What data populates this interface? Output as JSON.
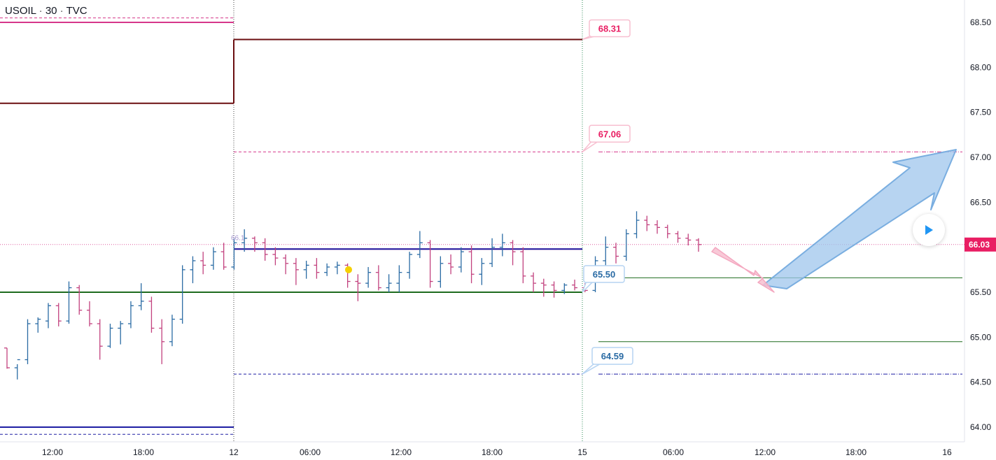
{
  "header": {
    "symbol": "USOIL",
    "interval": "30",
    "source": "TVC",
    "separator": "·"
  },
  "colors": {
    "up_bar": "#2a6ba4",
    "down_bar": "#c2417e",
    "dark_red_line": "#6b0e10",
    "magenta_line": "#d6368a",
    "navy_line": "#1f1fa3",
    "green_line": "#1e6b1e",
    "current_price_bg": "#e91e63",
    "callout_pink": "#e91e63",
    "callout_blue": "#2a6ba4",
    "arrow_blue": "#9fc5ec",
    "arrow_pink": "#f7bfd0",
    "marker_yellow": "#f5d000"
  },
  "chart_data": {
    "type": "line",
    "subtype": "ohlc-bars",
    "symbol": "USOIL",
    "timeframe": "30",
    "y_axis": {
      "side": "right",
      "ticks": [
        "68.50",
        "68.00",
        "67.50",
        "67.00",
        "66.50",
        "66.00",
        "65.50",
        "65.00",
        "64.50",
        "64.00"
      ],
      "ylim": [
        63.8,
        68.6
      ]
    },
    "x_axis": {
      "ticks": [
        "12:00",
        "18:00",
        "12",
        "06:00",
        "12:00",
        "18:00",
        "15",
        "06:00",
        "12:00",
        "18:00",
        "16"
      ]
    },
    "current_price": "66.03",
    "session_levels": [
      {
        "name": "upper-prev",
        "value": 68.5,
        "color": "magenta",
        "style": "solid",
        "session": 1
      },
      {
        "name": "upper-prev-dash",
        "value": 68.55,
        "color": "magenta",
        "style": "dashed",
        "session": 1
      },
      {
        "name": "step-prev",
        "value": 67.6,
        "color": "dark-red",
        "style": "solid",
        "session": 1
      },
      {
        "name": "lower-prev",
        "value": 64.0,
        "color": "navy",
        "style": "solid",
        "session": 1
      },
      {
        "name": "lower-prev-dash",
        "value": 63.92,
        "color": "navy",
        "style": "dashed",
        "session": 1
      },
      {
        "name": "step-high",
        "value": 68.31,
        "color": "dark-red",
        "style": "solid",
        "session": 2
      },
      {
        "name": "pink-dash",
        "value": 67.06,
        "color": "magenta",
        "style": "dashed",
        "session": 2
      },
      {
        "name": "magenta-pivot",
        "value": 65.98,
        "color": "magenta",
        "style": "solid",
        "session": 2
      },
      {
        "name": "navy-pivot",
        "value": 65.98,
        "color": "navy",
        "style": "solid",
        "session": 2
      },
      {
        "name": "green-pivot",
        "value": 65.5,
        "color": "green",
        "style": "solid",
        "session": 0
      },
      {
        "name": "blue-dash",
        "value": 64.59,
        "color": "navy",
        "style": "dashed",
        "session": 2
      },
      {
        "name": "pink-dashdot-next",
        "value": 67.06,
        "color": "magenta",
        "style": "dash-dot",
        "session": 3
      },
      {
        "name": "green-next-upper",
        "value": 65.66,
        "color": "green",
        "style": "thin",
        "session": 3
      },
      {
        "name": "green-next-lower",
        "value": 64.95,
        "color": "green",
        "style": "thin",
        "session": 3
      },
      {
        "name": "navy-dashdot-next",
        "value": 64.59,
        "color": "navy",
        "style": "dash-dot",
        "session": 3
      }
    ],
    "callouts": [
      {
        "label": "68.31",
        "value": 68.31,
        "color": "pink"
      },
      {
        "label": "67.06",
        "value": 67.06,
        "color": "pink"
      },
      {
        "label": "65.50",
        "value": 65.5,
        "color": "blue"
      },
      {
        "label": "64.59",
        "value": 64.59,
        "color": "blue"
      }
    ],
    "faint_label": "66.1",
    "marker": {
      "type": "dot",
      "color": "yellow",
      "value": 65.75
    },
    "arrows": [
      {
        "direction": "up",
        "from_value": 65.55,
        "to_value": 67.1,
        "color": "blue"
      },
      {
        "direction": "down",
        "from_value": 66.0,
        "to_value": 65.5,
        "color": "pink"
      }
    ],
    "ohlc_bars": [
      [
        64.88,
        64.88,
        64.65,
        64.66
      ],
      [
        64.66,
        64.7,
        64.53,
        64.75
      ],
      [
        64.75,
        65.2,
        64.7,
        65.15
      ],
      [
        65.15,
        65.22,
        65.05,
        65.2
      ],
      [
        65.18,
        65.38,
        65.1,
        65.35
      ],
      [
        65.35,
        65.38,
        65.12,
        65.18
      ],
      [
        65.18,
        65.62,
        65.15,
        65.55
      ],
      [
        65.55,
        65.58,
        65.25,
        65.3
      ],
      [
        65.3,
        65.4,
        65.12,
        65.15
      ],
      [
        65.15,
        65.2,
        64.75,
        64.9
      ],
      [
        64.9,
        65.15,
        64.88,
        65.1
      ],
      [
        65.1,
        65.18,
        64.92,
        65.15
      ],
      [
        65.15,
        65.4,
        65.1,
        65.35
      ],
      [
        65.35,
        65.6,
        65.3,
        65.4
      ],
      [
        65.4,
        65.45,
        65.05,
        65.1
      ],
      [
        65.1,
        65.2,
        64.7,
        64.95
      ],
      [
        64.95,
        65.25,
        64.9,
        65.2
      ],
      [
        65.2,
        65.8,
        65.15,
        65.75
      ],
      [
        65.75,
        65.9,
        65.6,
        65.85
      ],
      [
        65.85,
        65.95,
        65.7,
        65.8
      ],
      [
        65.8,
        66.0,
        65.75,
        65.95
      ],
      [
        65.95,
        66.05,
        65.75,
        65.78
      ],
      [
        65.78,
        66.1,
        65.75,
        66.05
      ],
      [
        66.05,
        66.2,
        65.95,
        66.1
      ],
      [
        66.1,
        66.12,
        65.95,
        66.05
      ],
      [
        66.05,
        66.1,
        65.85,
        65.92
      ],
      [
        65.92,
        66.0,
        65.8,
        65.88
      ],
      [
        65.88,
        65.92,
        65.7,
        65.82
      ],
      [
        65.82,
        65.88,
        65.58,
        65.75
      ],
      [
        65.75,
        65.85,
        65.65,
        65.8
      ],
      [
        65.8,
        65.88,
        65.65,
        65.72
      ],
      [
        65.72,
        65.82,
        65.68,
        65.78
      ],
      [
        65.78,
        65.84,
        65.7,
        65.8
      ],
      [
        65.8,
        65.82,
        65.55,
        65.62
      ],
      [
        65.62,
        65.7,
        65.4,
        65.6
      ],
      [
        65.6,
        65.78,
        65.55,
        65.72
      ],
      [
        65.72,
        65.8,
        65.52,
        65.55
      ],
      [
        65.55,
        65.7,
        65.5,
        65.6
      ],
      [
        65.6,
        65.8,
        65.5,
        65.72
      ],
      [
        65.72,
        65.95,
        65.65,
        65.92
      ],
      [
        65.92,
        66.18,
        65.88,
        66.05
      ],
      [
        66.05,
        66.08,
        65.55,
        65.62
      ],
      [
        65.62,
        65.9,
        65.55,
        65.82
      ],
      [
        65.82,
        65.92,
        65.7,
        65.78
      ],
      [
        65.78,
        66.0,
        65.72,
        65.95
      ],
      [
        65.95,
        66.02,
        65.6,
        65.7
      ],
      [
        65.7,
        65.88,
        65.58,
        65.82
      ],
      [
        65.82,
        66.1,
        65.78,
        66.0
      ],
      [
        66.0,
        66.15,
        65.9,
        66.05
      ],
      [
        66.05,
        66.08,
        65.8,
        65.95
      ],
      [
        65.95,
        66.0,
        65.6,
        65.68
      ],
      [
        65.68,
        65.72,
        65.5,
        65.6
      ],
      [
        65.6,
        65.65,
        65.45,
        65.58
      ],
      [
        65.58,
        65.62,
        65.44,
        65.52
      ],
      [
        65.52,
        65.6,
        65.48,
        65.58
      ],
      [
        65.58,
        65.64,
        65.52,
        65.55
      ],
      [
        65.55,
        65.6,
        65.5,
        65.52
      ],
      [
        65.52,
        65.9,
        65.5,
        65.85
      ],
      [
        65.85,
        66.12,
        65.8,
        66.0
      ],
      [
        66.0,
        66.05,
        65.82,
        65.9
      ],
      [
        65.9,
        66.2,
        65.85,
        66.15
      ],
      [
        66.15,
        66.4,
        66.1,
        66.3
      ],
      [
        66.3,
        66.35,
        66.18,
        66.25
      ],
      [
        66.25,
        66.3,
        66.15,
        66.22
      ],
      [
        66.22,
        66.25,
        66.1,
        66.15
      ],
      [
        66.15,
        66.18,
        66.05,
        66.1
      ],
      [
        66.1,
        66.15,
        66.02,
        66.08
      ],
      [
        66.08,
        66.1,
        65.95,
        66.03
      ]
    ]
  }
}
